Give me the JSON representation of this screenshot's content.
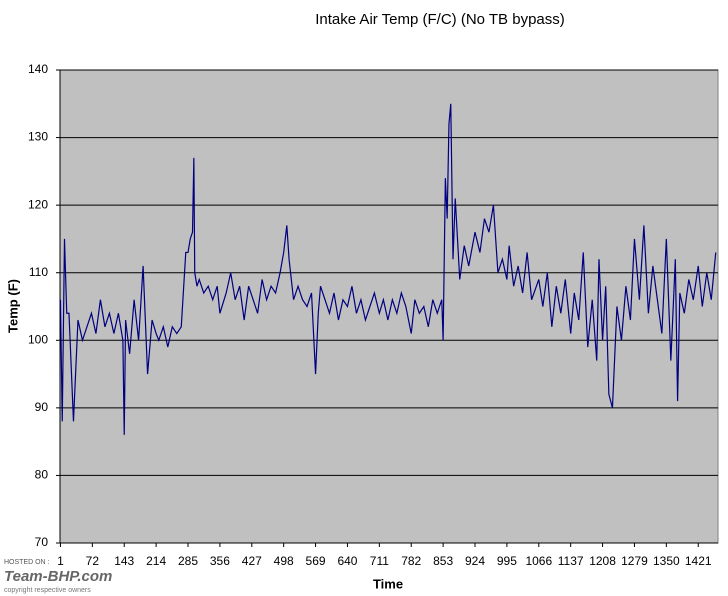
{
  "chart_data": {
    "type": "line",
    "title": "Intake Air Temp (F/C) (No TB bypass)",
    "x_label": "Time",
    "y_label": "Temp (F)",
    "x": [
      1,
      5,
      10,
      15,
      20,
      30,
      40,
      50,
      60,
      70,
      80,
      90,
      100,
      110,
      120,
      130,
      140,
      143,
      146,
      155,
      165,
      175,
      185,
      195,
      205,
      214,
      220,
      230,
      240,
      250,
      260,
      270,
      280,
      285,
      290,
      295,
      298,
      300,
      305,
      310,
      320,
      330,
      340,
      350,
      356,
      370,
      380,
      390,
      400,
      410,
      420,
      430,
      440,
      450,
      460,
      470,
      480,
      490,
      498,
      505,
      510,
      520,
      530,
      540,
      550,
      560,
      569,
      575,
      580,
      590,
      600,
      610,
      620,
      630,
      640,
      650,
      660,
      670,
      680,
      690,
      700,
      711,
      720,
      730,
      740,
      750,
      760,
      770,
      782,
      790,
      800,
      810,
      820,
      830,
      840,
      850,
      853,
      858,
      862,
      866,
      870,
      875,
      880,
      890,
      900,
      910,
      924,
      935,
      945,
      955,
      965,
      975,
      985,
      995,
      1000,
      1010,
      1020,
      1030,
      1040,
      1050,
      1066,
      1075,
      1085,
      1095,
      1105,
      1115,
      1125,
      1137,
      1145,
      1155,
      1165,
      1175,
      1185,
      1195,
      1200,
      1208,
      1215,
      1222,
      1230,
      1240,
      1250,
      1260,
      1270,
      1279,
      1290,
      1300,
      1310,
      1320,
      1330,
      1340,
      1350,
      1360,
      1370,
      1375,
      1380,
      1390,
      1400,
      1410,
      1421,
      1430,
      1440,
      1450,
      1460
    ],
    "series": [
      {
        "name": "Temp (F)",
        "color": "#000080",
        "values": [
          106,
          88,
          115,
          104,
          104,
          88,
          103,
          100,
          102,
          104,
          101,
          106,
          102,
          104,
          101,
          104,
          100,
          86,
          103,
          98,
          106,
          100,
          111,
          95,
          103,
          101,
          100,
          102,
          99,
          102,
          101,
          102,
          113,
          113,
          115,
          116,
          127,
          110,
          108,
          109,
          107,
          108,
          106,
          108,
          104,
          107,
          110,
          106,
          108,
          103,
          108,
          106,
          104,
          109,
          106,
          108,
          107,
          110,
          113,
          117,
          112,
          106,
          108,
          106,
          105,
          107,
          95,
          104,
          108,
          106,
          104,
          107,
          103,
          106,
          105,
          108,
          104,
          106,
          103,
          105,
          107,
          104,
          106,
          103,
          106,
          104,
          107,
          105,
          101,
          106,
          104,
          105,
          102,
          106,
          104,
          106,
          100,
          124,
          118,
          132,
          135,
          112,
          121,
          109,
          114,
          111,
          116,
          113,
          118,
          116,
          120,
          110,
          112,
          109,
          114,
          108,
          111,
          107,
          113,
          106,
          109,
          105,
          110,
          102,
          108,
          104,
          109,
          101,
          107,
          103,
          113,
          99,
          106,
          97,
          112,
          100,
          108,
          92,
          90,
          105,
          100,
          108,
          103,
          115,
          106,
          117,
          104,
          111,
          106,
          101,
          115,
          97,
          112,
          91,
          107,
          104,
          109,
          106,
          111,
          105,
          110,
          106,
          113
        ]
      }
    ],
    "xlim": [
      0,
      1465
    ],
    "xticks": [
      1,
      72,
      143,
      214,
      285,
      356,
      427,
      498,
      569,
      640,
      711,
      782,
      853,
      924,
      995,
      1066,
      1137,
      1208,
      1279,
      1350,
      1421
    ],
    "ylim": [
      70,
      140
    ],
    "yticks": [
      70,
      80,
      90,
      100,
      110,
      120,
      130,
      140
    ],
    "grid": true,
    "background": "#c0c0c0"
  },
  "watermark": {
    "hosted": "HOSTED ON :",
    "brand": "Team-BHP.com",
    "copyright": "copyright respective owners"
  }
}
